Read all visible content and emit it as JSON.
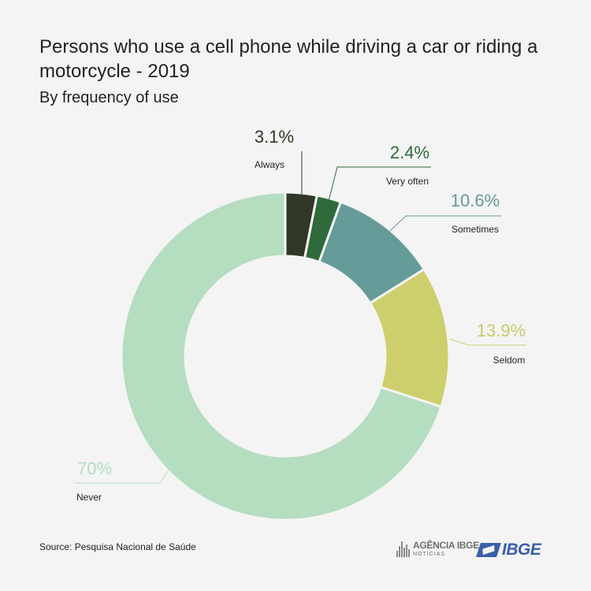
{
  "title": "Persons who use a cell phone while driving a car or riding a motorcycle - 2019",
  "subtitle": "By frequency of use",
  "source": "Source: Pesquisa Nacional de Saúde",
  "logos": {
    "agencia_main": "AGÊNCIA IBGE",
    "agencia_sub": "NOTÍCIAS",
    "ibge": "IBGE"
  },
  "colors": {
    "background": "#f4f4f4",
    "leader_line": "#b5ddc0"
  },
  "chart_data": {
    "type": "pie",
    "variant": "donut",
    "unit": "%",
    "slices": [
      {
        "label": "Always",
        "value": 3.1,
        "display": "3.1%",
        "color": "#2f3826",
        "value_color": "#2f3826"
      },
      {
        "label": "Very often",
        "value": 2.4,
        "display": "2.4%",
        "color": "#2e6a3a",
        "value_color": "#2e6a3a"
      },
      {
        "label": "Sometimes",
        "value": 10.6,
        "display": "10.6%",
        "color": "#659b98",
        "value_color": "#659b98"
      },
      {
        "label": "Seldom",
        "value": 13.9,
        "display": "13.9%",
        "color": "#cdcf6c",
        "value_color": "#c9c86a"
      },
      {
        "label": "Never",
        "value": 70,
        "display": "70%",
        "color": "#b5ddc0",
        "value_color": "#b3dcc0"
      }
    ]
  }
}
